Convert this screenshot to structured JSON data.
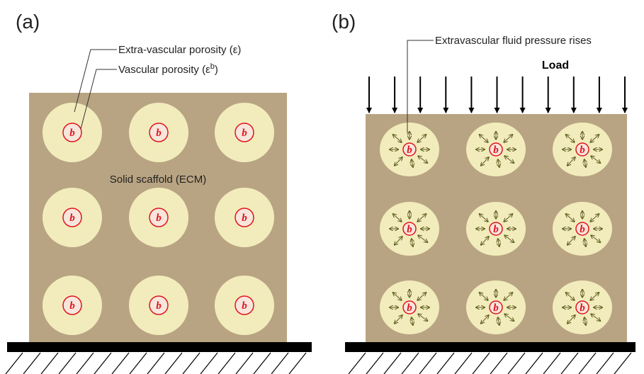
{
  "panel_a": {
    "label": "(a)",
    "extra_vascular_porosity": "Extra-vascular porosity (ε)",
    "vascular_porosity": {
      "text": "Vascular porosity (ε",
      "sup": "b",
      "close": ")"
    },
    "solid_scaffold": "Solid scaffold (ECM)"
  },
  "panel_b": {
    "label": "(b)",
    "load": "Load",
    "pressure_note": "Extravascular fluid pressure rises"
  },
  "pore_label": "b"
}
